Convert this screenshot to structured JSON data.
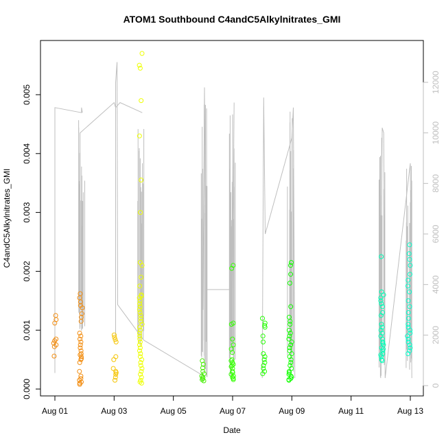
{
  "chart_data": {
    "type": "scatter",
    "title": "ATOM1 Southbound C4andC5Alkylnitrates_GMI",
    "xlabel": "Date",
    "ylabel": "C4andC5Alkylnitrates_GMI",
    "x_range_days": [
      0.6,
      13.2
    ],
    "ylim": [
      0,
      0.0059
    ],
    "y2lim": [
      0,
      13500
    ],
    "grid": false,
    "legend": "none",
    "x_ticks": [
      {
        "day": 1,
        "label": "Aug 01"
      },
      {
        "day": 3,
        "label": "Aug 03"
      },
      {
        "day": 5,
        "label": "Aug 05"
      },
      {
        "day": 7,
        "label": "Aug 07"
      },
      {
        "day": 9,
        "label": "Aug 09"
      },
      {
        "day": 11,
        "label": "Aug 11"
      },
      {
        "day": 13,
        "label": "Aug 13"
      }
    ],
    "y_ticks": [
      {
        "value": 0,
        "label": "0.000"
      },
      {
        "value": 0.001,
        "label": "0.001"
      },
      {
        "value": 0.002,
        "label": "0.002"
      },
      {
        "value": 0.003,
        "label": "0.003"
      },
      {
        "value": 0.004,
        "label": "0.004"
      },
      {
        "value": 0.005,
        "label": "0.005"
      }
    ],
    "y2_ticks": [
      {
        "value": 0,
        "label": "0"
      },
      {
        "value": 2000,
        "label": "2000"
      },
      {
        "value": 4000,
        "label": "4000"
      },
      {
        "value": 6000,
        "label": "6000"
      },
      {
        "value": 8000,
        "label": "8000"
      },
      {
        "value": 10000,
        "label": "10000"
      },
      {
        "value": 12000,
        "label": "12000"
      }
    ],
    "colors": {
      "altitude_line": "#bebebe",
      "right_axis": "#bebebe",
      "flight_colors": [
        "#f28c0f",
        "#f5a500",
        "#e6f200",
        "#eeff00",
        "#33ee00",
        "#22ff00",
        "#00ff44",
        "#00ffb0",
        "#00ffcc"
      ]
    },
    "series": [
      {
        "day_center": 1.0,
        "color": "#f28c0f",
        "values": [
          0.00125,
          0.00118,
          0.00112,
          0.00085,
          0.00082,
          0.00078,
          0.00075,
          0.00072,
          0.00056
        ]
      },
      {
        "day_center": 1.88,
        "color": "#f28c0f",
        "values": [
          0.00162,
          0.00155,
          0.00148,
          0.00142,
          0.00138,
          0.00128,
          0.00122,
          0.00115,
          0.00095,
          0.0009,
          0.00085,
          0.0008,
          0.00075,
          0.0007,
          0.00065,
          0.0006,
          0.00058,
          0.00055,
          0.00052,
          0.0005,
          0.00045,
          0.0003,
          0.00022,
          0.00018,
          0.00015,
          0.00012,
          0.0001,
          8e-05
        ]
      },
      {
        "day_center": 3.02,
        "color": "#f5c400",
        "values": [
          0.00092,
          0.00088,
          0.00084,
          0.0008,
          0.00055,
          0.0005,
          0.00035,
          0.0003,
          0.00028,
          0.00025,
          0.0002,
          0.00015
        ]
      },
      {
        "day_center": 3.9,
        "color": "#eeff00",
        "values": [
          0.0057,
          0.0055,
          0.00545,
          0.0049,
          0.0043,
          0.00355,
          0.003,
          0.00215,
          0.0021,
          0.0019,
          0.00175,
          0.0016,
          0.00158,
          0.00155,
          0.0015,
          0.00145,
          0.0014,
          0.00135,
          0.0013,
          0.00125,
          0.0012,
          0.00115,
          0.0011,
          0.00105,
          0.001,
          0.00095,
          0.0009,
          0.00085,
          0.0008,
          0.00075,
          0.0007,
          0.00065,
          0.0006,
          0.00055,
          0.0005,
          0.00045,
          0.0004,
          0.00035,
          0.0003,
          0.00025,
          0.0002,
          0.00015,
          0.00012,
          0.0001
        ]
      },
      {
        "day_center": 6.0,
        "color": "#44ee00",
        "values": [
          0.00048,
          0.00042,
          0.00036,
          0.0003,
          0.00026,
          0.00022,
          0.0002,
          0.00018,
          0.00016,
          0.00014
        ]
      },
      {
        "day_center": 7.0,
        "color": "#33ff00",
        "values": [
          0.0021,
          0.00205,
          0.00112,
          0.0011,
          0.00085,
          0.00075,
          0.00068,
          0.00062,
          0.0005,
          0.00048,
          0.00045,
          0.00042,
          0.0004,
          0.00038,
          0.00035,
          0.0003,
          0.00028,
          0.00025,
          0.00022,
          0.0002,
          0.00018,
          0.00016
        ]
      },
      {
        "day_center": 8.05,
        "color": "#22ff00",
        "values": [
          0.0012,
          0.00112,
          0.00108,
          0.00105,
          0.0009,
          0.0008,
          0.0006,
          0.00055,
          0.0005,
          0.00045,
          0.0004,
          0.00035,
          0.0003,
          0.00026
        ]
      },
      {
        "day_center": 8.95,
        "color": "#11ff00",
        "values": [
          0.00215,
          0.0021,
          0.00195,
          0.0018,
          0.0014,
          0.00122,
          0.00115,
          0.0011,
          0.001,
          0.00095,
          0.0009,
          0.00085,
          0.0008,
          0.00075,
          0.0007,
          0.00065,
          0.0006,
          0.00055,
          0.0005,
          0.00045,
          0.0004,
          0.00035,
          0.0003,
          0.00028,
          0.00025,
          0.00022,
          0.0002,
          0.00018,
          0.00016,
          0.00015
        ]
      },
      {
        "day_center": 12.05,
        "color": "#00ffb8",
        "values": [
          0.00225,
          0.00165,
          0.0016,
          0.00155,
          0.0015,
          0.00145,
          0.0014,
          0.0013,
          0.00125,
          0.0011,
          0.00105,
          0.001,
          0.00095,
          0.0009,
          0.00085,
          0.0008,
          0.00078,
          0.00075,
          0.0007,
          0.00068,
          0.00065,
          0.0006,
          0.00058,
          0.00055,
          0.0005,
          0.00048
        ]
      },
      {
        "day_center": 12.95,
        "color": "#00ffcc",
        "values": [
          0.00245,
          0.0023,
          0.0022,
          0.0021,
          0.00195,
          0.00185,
          0.00175,
          0.00165,
          0.0015,
          0.0014,
          0.0013,
          0.0012,
          0.0011,
          0.00105,
          0.001,
          0.00095,
          0.0009,
          0.00085,
          0.0008,
          0.00075,
          0.0007,
          0.00065,
          0.0006
        ]
      }
    ],
    "altitude_segments": [
      [
        [
          1.0,
          500
        ],
        [
          1.0,
          11000
        ],
        [
          1.9,
          10800
        ],
        [
          1.9,
          11000
        ],
        [
          1.93,
          10800
        ]
      ],
      [
        [
          1.85,
          2300
        ],
        [
          1.85,
          10000
        ],
        [
          3.0,
          11200
        ],
        [
          3.05,
          11000
        ],
        [
          3.2,
          11200
        ],
        [
          3.95,
          10800
        ]
      ],
      [
        [
          3.05,
          2000
        ],
        [
          3.05,
          12000
        ],
        [
          3.1,
          12800
        ],
        [
          3.12,
          3200
        ],
        [
          4.0,
          1800
        ],
        [
          6.0,
          400
        ]
      ],
      [
        [
          6.0,
          3000
        ],
        [
          6.05,
          11800
        ],
        [
          6.1,
          3800
        ],
        [
          7.0,
          3800
        ],
        [
          7.05,
          11200
        ]
      ],
      [
        [
          8.0,
          300
        ],
        [
          8.05,
          11400
        ],
        [
          8.1,
          6000
        ],
        [
          9.0,
          9800
        ],
        [
          9.05,
          11000
        ],
        [
          9.1,
          300
        ]
      ],
      [
        [
          12.0,
          300
        ],
        [
          12.05,
          10200
        ],
        [
          12.1,
          10000
        ],
        [
          12.15,
          300
        ],
        [
          13.0,
          8800
        ],
        [
          13.05,
          300
        ]
      ]
    ]
  }
}
